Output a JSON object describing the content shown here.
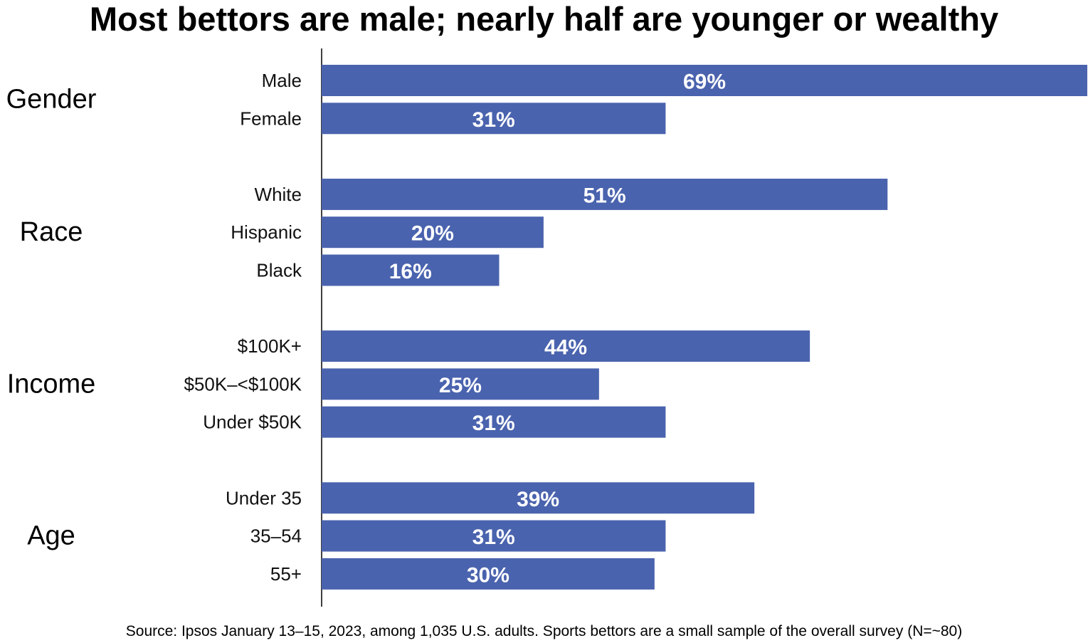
{
  "chart_data": {
    "type": "bar",
    "orientation": "horizontal",
    "title": "Most bettors are male; nearly half are younger or wealthy",
    "source": "Source: Ipsos January 13–15, 2023, among 1,035 U.S. adults. Sports bettors are a small sample of the overall survey (N=~80)",
    "xlim": [
      0,
      69
    ],
    "grid": false,
    "groups": [
      {
        "name": "Gender",
        "items": [
          {
            "label": "Male",
            "value": 69,
            "value_label": "69%"
          },
          {
            "label": "Female",
            "value": 31,
            "value_label": "31%"
          }
        ]
      },
      {
        "name": "Race",
        "items": [
          {
            "label": "White",
            "value": 51,
            "value_label": "51%"
          },
          {
            "label": "Hispanic",
            "value": 20,
            "value_label": "20%"
          },
          {
            "label": "Black",
            "value": 16,
            "value_label": "16%"
          }
        ]
      },
      {
        "name": "Income",
        "items": [
          {
            "label": "$100K+",
            "value": 44,
            "value_label": "44%"
          },
          {
            "label": "$50K–<$100K",
            "value": 25,
            "value_label": "25%"
          },
          {
            "label": "Under $50K",
            "value": 31,
            "value_label": "31%"
          }
        ]
      },
      {
        "name": "Age",
        "items": [
          {
            "label": "Under 35",
            "value": 39,
            "value_label": "39%"
          },
          {
            "label": "35–54",
            "value": 31,
            "value_label": "31%"
          },
          {
            "label": "55+",
            "value": 30,
            "value_label": "30%"
          }
        ]
      }
    ],
    "colors": {
      "bar": "#4a63ae",
      "bar_label": "#ffffff",
      "axis": "#000000"
    }
  }
}
